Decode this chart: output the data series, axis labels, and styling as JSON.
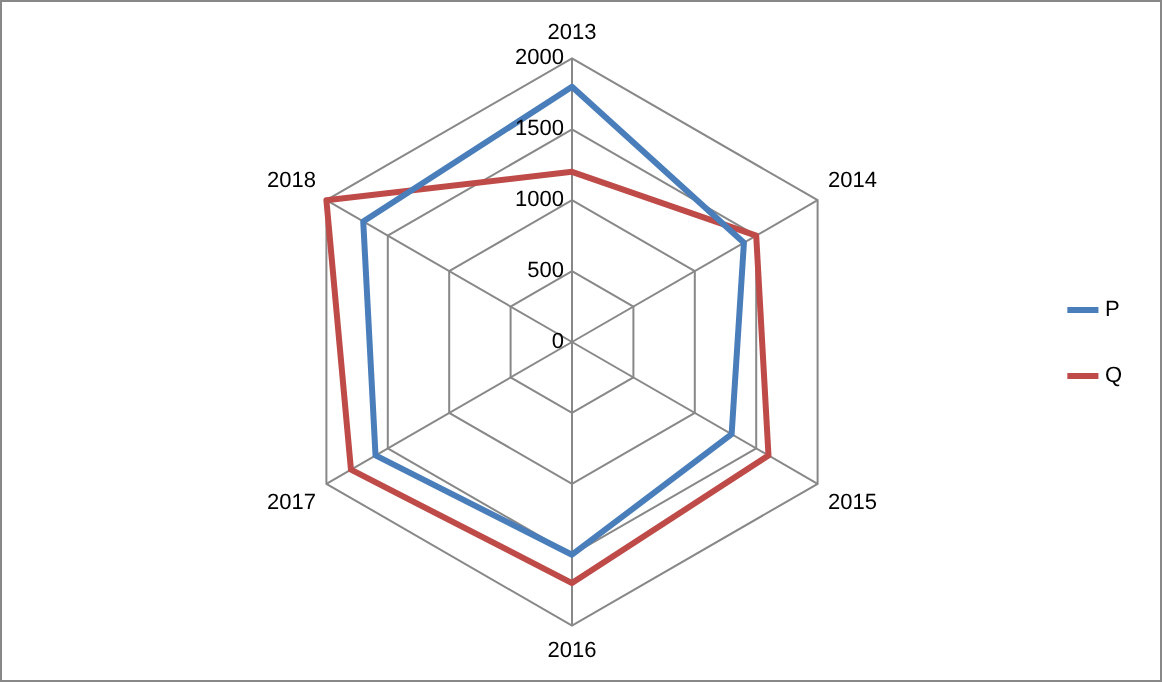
{
  "chart_data": {
    "type": "radar",
    "categories": [
      "2013",
      "2014",
      "2015",
      "2016",
      "2017",
      "2018"
    ],
    "series": [
      {
        "name": "P",
        "color": "#4a7ebb",
        "values": [
          1800,
          1400,
          1300,
          1500,
          1600,
          1700
        ]
      },
      {
        "name": "Q",
        "color": "#be4b48",
        "values": [
          1200,
          1500,
          1600,
          1700,
          1800,
          2000
        ]
      }
    ],
    "ylim": [
      0,
      2000
    ],
    "yticks": [
      0,
      500,
      1000,
      1500,
      2000
    ],
    "grid": true,
    "legend": "right",
    "marker": "none",
    "line_style": "solid"
  }
}
